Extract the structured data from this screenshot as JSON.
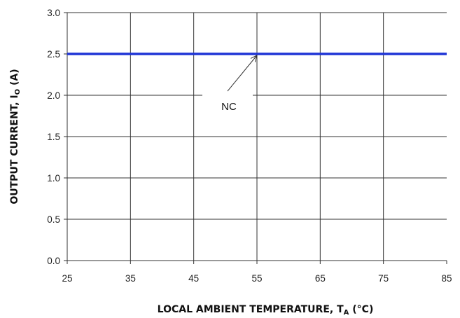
{
  "chart_data": {
    "type": "line",
    "title": "",
    "xlabel": "LOCAL AMBIENT TEMPERATURE, T",
    "xlabel_subscript": "A",
    "xlabel_suffix": " (°C)",
    "ylabel": "OUTPUT CURRENT, I",
    "ylabel_subscript": "O",
    "ylabel_suffix": " (A)",
    "xlim": [
      25,
      85
    ],
    "ylim": [
      0.0,
      3.0
    ],
    "xticks": [
      "25",
      "35",
      "45",
      "55",
      "65",
      "75",
      "85"
    ],
    "yticks": [
      "0.0",
      "0.5",
      "1.0",
      "1.5",
      "2.0",
      "2.5",
      "3.0"
    ],
    "grid": true,
    "series": [
      {
        "name": "NC",
        "color": "#1f35d6",
        "x": [
          25,
          85
        ],
        "y": [
          2.5,
          2.5
        ]
      }
    ],
    "annotations": [
      {
        "text": "NC",
        "x": 55,
        "y": 2.5
      }
    ]
  }
}
